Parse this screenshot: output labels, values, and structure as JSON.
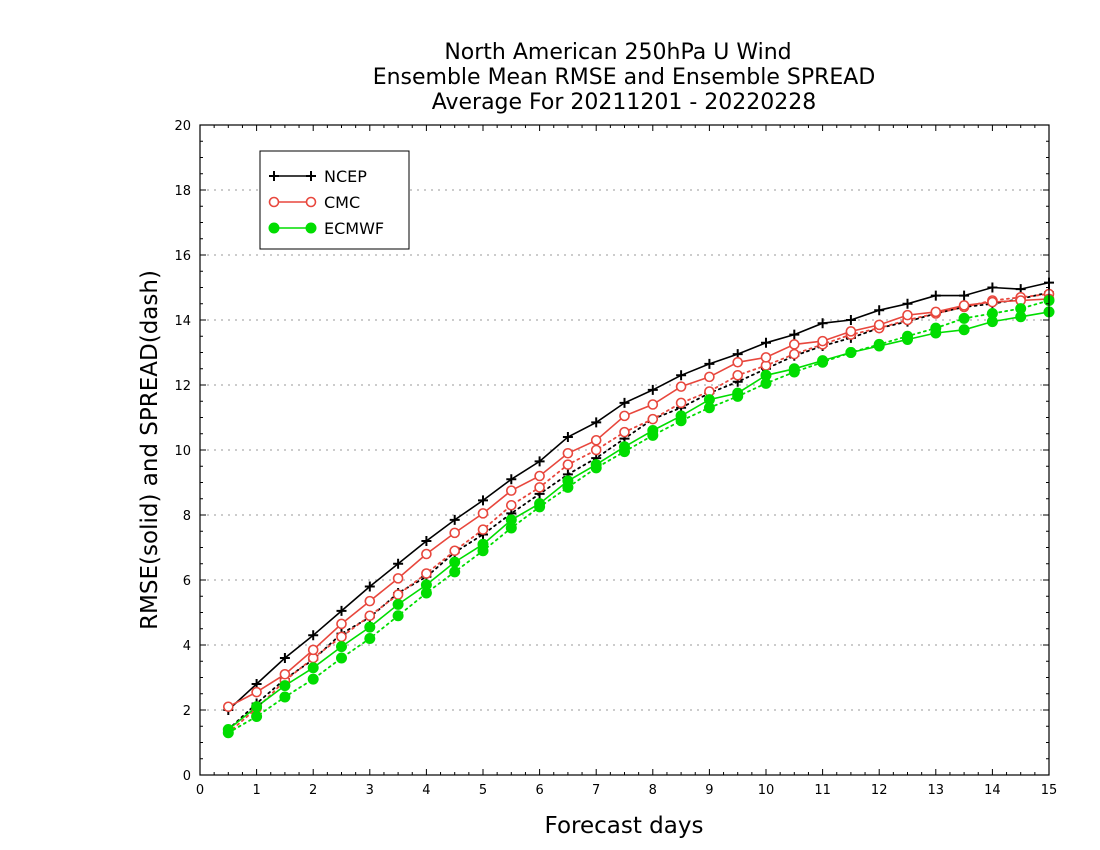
{
  "chart_data": {
    "type": "line",
    "title_lines": [
      "North American 250hPa U Wind",
      "Ensemble Mean RMSE and Ensemble SPREAD",
      "Average For 20211201 - 20220228"
    ],
    "xlabel": "Forecast days",
    "ylabel": "RMSE(solid) and SPREAD(dash)",
    "xlim": [
      0,
      15
    ],
    "ylim": [
      0,
      20
    ],
    "xticks": [
      0,
      1,
      2,
      3,
      4,
      5,
      6,
      7,
      8,
      9,
      10,
      11,
      12,
      13,
      14,
      15
    ],
    "yticks": [
      0,
      2,
      4,
      6,
      8,
      10,
      12,
      14,
      16,
      18,
      20
    ],
    "grid": true,
    "legend_position": "top-left",
    "x": [
      0.5,
      1,
      1.5,
      2,
      2.5,
      3,
      3.5,
      4,
      4.5,
      5,
      5.5,
      6,
      6.5,
      7,
      7.5,
      8,
      8.5,
      9,
      9.5,
      10,
      10.5,
      11,
      11.5,
      12,
      12.5,
      13,
      13.5,
      14,
      14.5,
      15
    ],
    "series": [
      {
        "name": "NCEP",
        "color": "#000000",
        "marker": "plus",
        "rmse": [
          2.0,
          2.8,
          3.6,
          4.3,
          5.05,
          5.8,
          6.5,
          7.2,
          7.85,
          8.45,
          9.1,
          9.65,
          10.4,
          10.85,
          11.45,
          11.85,
          12.3,
          12.65,
          12.95,
          13.3,
          13.55,
          13.9,
          14.0,
          14.3,
          14.5,
          14.75,
          14.75,
          15.0,
          14.95,
          15.15
        ],
        "spread": [
          1.4,
          2.2,
          2.95,
          3.55,
          4.35,
          4.85,
          5.6,
          6.1,
          6.85,
          7.4,
          8.05,
          8.65,
          9.25,
          9.75,
          10.35,
          10.95,
          11.3,
          11.75,
          12.1,
          12.5,
          12.9,
          13.2,
          13.45,
          13.75,
          13.95,
          14.2,
          14.4,
          14.5,
          14.65,
          14.85
        ]
      },
      {
        "name": "CMC",
        "color": "#e8473d",
        "marker": "circle-open",
        "rmse": [
          2.1,
          2.55,
          3.1,
          3.85,
          4.65,
          5.35,
          6.05,
          6.8,
          7.45,
          8.05,
          8.75,
          9.2,
          9.9,
          10.3,
          11.05,
          11.4,
          11.95,
          12.25,
          12.7,
          12.85,
          13.25,
          13.35,
          13.65,
          13.85,
          14.15,
          14.25,
          14.45,
          14.55,
          14.6,
          14.65
        ],
        "spread": [
          1.3,
          2.05,
          2.9,
          3.6,
          4.25,
          4.9,
          5.55,
          6.2,
          6.9,
          7.55,
          8.3,
          8.85,
          9.55,
          10.0,
          10.55,
          10.95,
          11.45,
          11.8,
          12.3,
          12.6,
          12.95,
          13.25,
          13.55,
          13.75,
          14.0,
          14.2,
          14.4,
          14.6,
          14.7,
          14.8
        ]
      },
      {
        "name": "ECMWF",
        "color": "#00dd00",
        "marker": "circle-filled",
        "rmse": [
          1.4,
          2.1,
          2.75,
          3.3,
          3.95,
          4.55,
          5.25,
          5.85,
          6.55,
          7.1,
          7.85,
          8.35,
          9.05,
          9.55,
          10.1,
          10.6,
          11.05,
          11.55,
          11.75,
          12.3,
          12.5,
          12.75,
          13.0,
          13.2,
          13.4,
          13.6,
          13.7,
          13.95,
          14.1,
          14.25
        ],
        "spread": [
          1.3,
          1.8,
          2.4,
          2.95,
          3.6,
          4.2,
          4.9,
          5.6,
          6.25,
          6.9,
          7.6,
          8.25,
          8.85,
          9.45,
          9.95,
          10.45,
          10.9,
          11.3,
          11.65,
          12.05,
          12.4,
          12.7,
          13.0,
          13.25,
          13.5,
          13.75,
          14.05,
          14.2,
          14.35,
          14.6
        ]
      }
    ]
  }
}
